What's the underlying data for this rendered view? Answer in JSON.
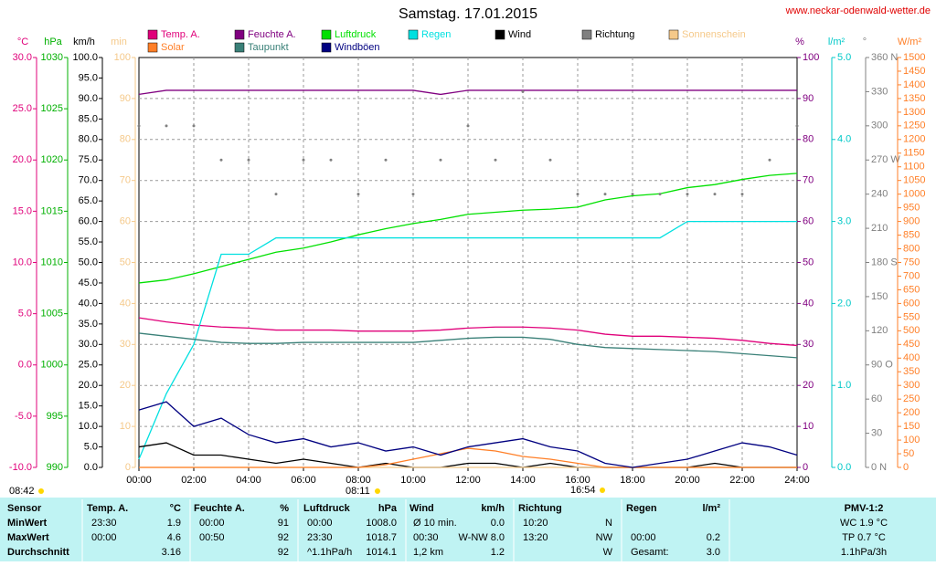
{
  "chart_data": {
    "type": "line",
    "title": "Samstag. 17.01.2015",
    "source": "www.neckar-odenwald-wetter.de",
    "grid": true,
    "xlim": [
      0,
      24
    ],
    "xticks": [
      {
        "value": 0,
        "label": "00:00"
      },
      {
        "value": 2,
        "label": "02:00"
      },
      {
        "value": 4,
        "label": "04:00"
      },
      {
        "value": 6,
        "label": "06:00"
      },
      {
        "value": 8,
        "label": "08:00"
      },
      {
        "value": 10,
        "label": "10:00"
      },
      {
        "value": 12,
        "label": "12:00"
      },
      {
        "value": 14,
        "label": "14:00"
      },
      {
        "value": 16,
        "label": "16:00"
      },
      {
        "value": 18,
        "label": "18:00"
      },
      {
        "value": 20,
        "label": "20:00"
      },
      {
        "value": 22,
        "label": "22:00"
      },
      {
        "value": 24,
        "label": "24:00"
      }
    ],
    "x": [
      0,
      1,
      2,
      3,
      4,
      5,
      6,
      7,
      8,
      9,
      10,
      11,
      12,
      13,
      14,
      15,
      16,
      17,
      18,
      19,
      20,
      21,
      22,
      23,
      24
    ],
    "axes": [
      {
        "unit": "°C",
        "color": "#e0007a",
        "lim": [
          -10,
          30
        ],
        "ticks": [
          {
            "value": 30,
            "label": "30.0"
          },
          {
            "value": 25,
            "label": "25.0"
          },
          {
            "value": 20,
            "label": "20.0"
          },
          {
            "value": 15,
            "label": "15.0"
          },
          {
            "value": 10,
            "label": "10.0"
          },
          {
            "value": 5,
            "label": "5.0"
          },
          {
            "value": 0,
            "label": "0.0"
          },
          {
            "value": -5,
            "label": "-5.0"
          },
          {
            "value": -10,
            "label": "-10.0"
          }
        ]
      },
      {
        "unit": "hPa",
        "color": "#00b000",
        "lim": [
          990,
          1030
        ],
        "ticks": [
          1030,
          1025,
          1020,
          1015,
          1010,
          1005,
          1000,
          995,
          990
        ]
      },
      {
        "unit": "km/h",
        "color": "#000000",
        "lim": [
          0,
          100
        ],
        "ticks": [
          {
            "value": 100,
            "label": "100.0"
          },
          {
            "value": 95,
            "label": "95.0"
          },
          {
            "value": 90,
            "label": "90.0"
          },
          {
            "value": 85,
            "label": "85.0"
          },
          {
            "value": 80,
            "label": "80.0"
          },
          {
            "value": 75,
            "label": "75.0"
          },
          {
            "value": 70,
            "label": "70.0"
          },
          {
            "value": 65,
            "label": "65.0"
          },
          {
            "value": 60,
            "label": "60.0"
          },
          {
            "value": 55,
            "label": "55.0"
          },
          {
            "value": 50,
            "label": "50.0"
          },
          {
            "value": 45,
            "label": "45.0"
          },
          {
            "value": 40,
            "label": "40.0"
          },
          {
            "value": 35,
            "label": "35.0"
          },
          {
            "value": 30,
            "label": "30.0"
          },
          {
            "value": 25,
            "label": "25.0"
          },
          {
            "value": 20,
            "label": "20.0"
          },
          {
            "value": 15,
            "label": "15.0"
          },
          {
            "value": 10,
            "label": "10.0"
          },
          {
            "value": 5,
            "label": "5.0"
          },
          {
            "value": 0,
            "label": "0.0"
          }
        ]
      },
      {
        "unit": "min",
        "color": "#f5c98a",
        "lim": [
          0,
          100
        ],
        "ticks": [
          100,
          90,
          80,
          70,
          60,
          50,
          40,
          30,
          20,
          10,
          0
        ]
      },
      {
        "unit": "%",
        "color": "#800080",
        "lim": [
          0,
          100
        ],
        "ticks": [
          100,
          90,
          80,
          70,
          60,
          50,
          40,
          30,
          20,
          10,
          0
        ]
      },
      {
        "unit": "l/m²",
        "color": "#00c8c8",
        "lim": [
          0,
          5
        ],
        "ticks": [
          {
            "value": 5,
            "label": "5.0"
          },
          {
            "value": 4,
            "label": "4.0"
          },
          {
            "value": 3,
            "label": "3.0"
          },
          {
            "value": 2,
            "label": "2.0"
          },
          {
            "value": 1,
            "label": "1.0"
          },
          {
            "value": 0,
            "label": "0.0"
          }
        ]
      },
      {
        "unit": "°",
        "color": "#808080",
        "lim": [
          0,
          360
        ],
        "ticks": [
          {
            "value": 360,
            "label": "360 N"
          },
          330,
          300,
          {
            "value": 270,
            "label": "270 W"
          },
          240,
          210,
          {
            "value": 180,
            "label": "180 S"
          },
          150,
          120,
          {
            "value": 90,
            "label": "90 O"
          },
          60,
          30,
          {
            "value": 0,
            "label": "0 N"
          }
        ]
      },
      {
        "unit": "W/m²",
        "color": "#ff7f27",
        "lim": [
          0,
          1500
        ],
        "ticks": [
          1500,
          1450,
          1400,
          1350,
          1300,
          1250,
          1200,
          1150,
          1100,
          1050,
          1000,
          950,
          900,
          850,
          800,
          750,
          700,
          650,
          600,
          550,
          500,
          450,
          400,
          350,
          300,
          250,
          200,
          150,
          100,
          50,
          0
        ]
      }
    ],
    "series": [
      {
        "name": "Temp. A.",
        "color": "#e0007a",
        "axis": "°C",
        "values": [
          4.6,
          4.2,
          3.9,
          3.7,
          3.6,
          3.4,
          3.4,
          3.4,
          3.3,
          3.3,
          3.3,
          3.4,
          3.6,
          3.7,
          3.7,
          3.6,
          3.4,
          3.0,
          2.8,
          2.8,
          2.7,
          2.6,
          2.4,
          2.1,
          1.9
        ]
      },
      {
        "name": "Feuchte A.",
        "color": "#800080",
        "axis": "%",
        "values": [
          91,
          92,
          92,
          92,
          92,
          92,
          92,
          92,
          92,
          92,
          92,
          91,
          92,
          92,
          92,
          92,
          92,
          92,
          92,
          92,
          92,
          92,
          92,
          92,
          92
        ]
      },
      {
        "name": "Luftdruck",
        "color": "#00e000",
        "axis": "hPa",
        "values": [
          1008.0,
          1008.3,
          1008.9,
          1009.6,
          1010.3,
          1011.0,
          1011.4,
          1012.0,
          1012.7,
          1013.3,
          1013.8,
          1014.2,
          1014.7,
          1014.9,
          1015.1,
          1015.2,
          1015.4,
          1016.1,
          1016.5,
          1016.7,
          1017.3,
          1017.6,
          1018.1,
          1018.5,
          1018.7
        ]
      },
      {
        "name": "Regen",
        "color": "#00e0e0",
        "axis": "l/m²",
        "values": [
          0.1,
          0.9,
          1.5,
          2.6,
          2.6,
          2.8,
          2.8,
          2.8,
          2.8,
          2.8,
          2.8,
          2.8,
          2.8,
          2.8,
          2.8,
          2.8,
          2.8,
          2.8,
          2.8,
          2.8,
          3.0,
          3.0,
          3.0,
          3.0,
          3.0
        ]
      },
      {
        "name": "Wind",
        "color": "#000000",
        "axis": "km/h",
        "values": [
          5,
          6,
          3,
          3,
          2,
          1,
          2,
          1,
          0,
          1,
          0,
          0,
          1,
          1,
          0,
          1,
          0,
          0,
          0,
          0,
          0,
          1,
          0,
          0,
          0
        ]
      },
      {
        "name": "Richtung",
        "color": "#808080",
        "axis": "°",
        "style": "dots",
        "values": [
          300,
          300,
          300,
          270,
          270,
          240,
          270,
          270,
          240,
          270,
          240,
          270,
          300,
          270,
          330,
          270,
          240,
          240,
          240,
          240,
          240,
          240,
          240,
          270,
          300
        ]
      },
      {
        "name": "Sonnenschein",
        "color": "#f5c98a",
        "axis": "min",
        "values": [
          0,
          0,
          0,
          0,
          0,
          0,
          0,
          0,
          0,
          0,
          0,
          0,
          0,
          0,
          0,
          0,
          0,
          0,
          0,
          0,
          0,
          0,
          0,
          0,
          0
        ]
      },
      {
        "name": "Solar",
        "color": "#ff7f27",
        "axis": "W/m²",
        "values": [
          0,
          0,
          0,
          0,
          0,
          0,
          0,
          0,
          0,
          10,
          30,
          50,
          70,
          60,
          40,
          30,
          15,
          0,
          0,
          0,
          0,
          0,
          0,
          0,
          0
        ]
      },
      {
        "name": "Taupunkt",
        "color": "#3a8078",
        "axis": "°C",
        "values": [
          3.1,
          2.8,
          2.5,
          2.2,
          2.1,
          2.1,
          2.2,
          2.2,
          2.2,
          2.2,
          2.2,
          2.4,
          2.6,
          2.7,
          2.7,
          2.5,
          2.0,
          1.7,
          1.6,
          1.5,
          1.4,
          1.3,
          1.1,
          0.9,
          0.7
        ]
      },
      {
        "name": "Windböen",
        "color": "#000080",
        "axis": "km/h",
        "values": [
          14,
          16,
          10,
          12,
          8,
          6,
          7,
          5,
          6,
          4,
          5,
          3,
          5,
          6,
          7,
          5,
          4,
          1,
          0,
          1,
          2,
          4,
          6,
          5,
          3
        ]
      }
    ],
    "annotations": [
      "08:42",
      "08:11",
      "16:54"
    ]
  },
  "table": {
    "header": [
      "Sensor",
      "Temp. A.",
      "°C",
      "Feuchte A.",
      "%",
      "Luftdruck",
      "hPa",
      "Wind",
      "km/h",
      "Richtung",
      "Regen",
      "l/m²",
      "PMV-1:2"
    ],
    "rows": [
      [
        "MinWert",
        "23:30",
        "1.9",
        "00:00",
        "91",
        "00:00",
        "1008.0",
        "Ø 10 min.",
        "0.0",
        "10:20",
        "N",
        null,
        null,
        "WC 1.9 °C"
      ],
      [
        "MaxWert",
        "00:00",
        "4.6",
        "00:50",
        "92",
        "23:30",
        "1018.7",
        "00:30",
        "W-NW 8.0",
        "13:20",
        "NW",
        "00:00",
        "0.2",
        "TP 0.7 °C"
      ],
      [
        "Durchschnitt",
        null,
        "3.16",
        null,
        "92",
        "^1.1hPa/h",
        "1014.1",
        "1,2 km",
        "1.2",
        null,
        "W",
        "Gesamt:",
        "3.0",
        "1.1hPa/3h"
      ]
    ]
  }
}
